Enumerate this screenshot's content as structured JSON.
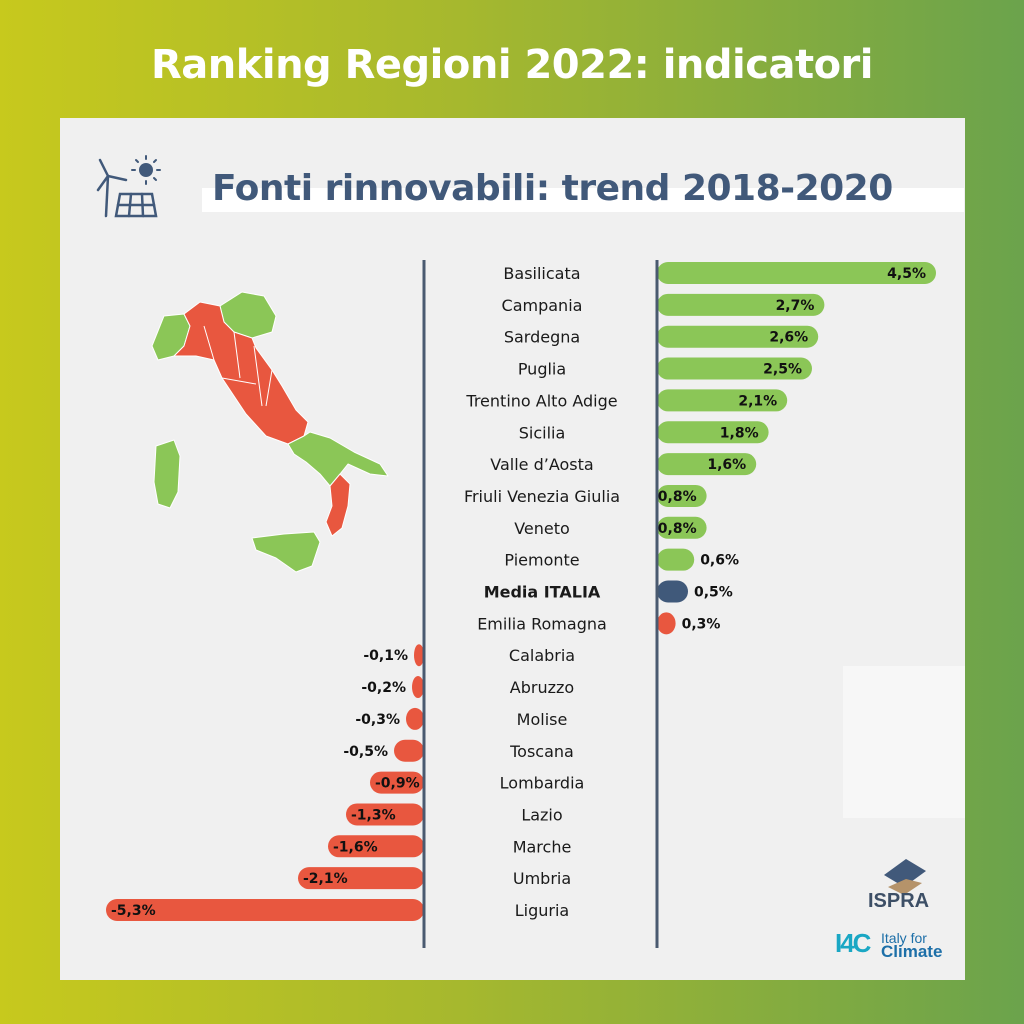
{
  "header": {
    "title": "Ranking Regioni 2022: indicatori",
    "subtitle": "Fonti rinnovabili: trend 2018-2020"
  },
  "logos": {
    "ispra": "ISPRA",
    "i4c_mark": "I4C",
    "i4c_line1": "Italy for",
    "i4c_line2": "Climate"
  },
  "icons": [
    "wind-turbine-icon",
    "solar-panel-icon",
    "sun-icon"
  ],
  "colors": {
    "positive": "#8bc657",
    "negative": "#e8573f",
    "average": "#40597a",
    "divider": "#4a5a70",
    "map_above": "#e8573f",
    "map_below": "#8bc657"
  },
  "chart_data": {
    "type": "bar",
    "orientation": "horizontal",
    "unit": "%",
    "categories": [
      "Basilicata",
      "Campania",
      "Sardegna",
      "Puglia",
      "Trentino Alto Adige",
      "Sicilia",
      "Valle d’Aosta",
      "Friuli Venezia Giulia",
      "Veneto",
      "Piemonte",
      "Media ITALIA",
      "Emilia Romagna",
      "Calabria",
      "Abruzzo",
      "Molise",
      "Toscana",
      "Lombardia",
      "Lazio",
      "Marche",
      "Umbria",
      "Liguria"
    ],
    "values": [
      4.5,
      2.7,
      2.6,
      2.5,
      2.1,
      1.8,
      1.6,
      0.8,
      0.8,
      0.6,
      0.5,
      0.3,
      -0.1,
      -0.2,
      -0.3,
      -0.5,
      -0.9,
      -1.3,
      -1.6,
      -2.1,
      -5.3
    ],
    "value_labels": [
      "4,5%",
      "2,7%",
      "2,6%",
      "2,5%",
      "2,1%",
      "1,8%",
      "1,6%",
      "0,8%",
      "0,8%",
      "0,6%",
      "0,5%",
      "0,3%",
      "-0,1%",
      "-0,2%",
      "-0,3%",
      "-0,5%",
      "-0,9%",
      "-1,3%",
      "-1,6%",
      "-2,1%",
      "-5,3%"
    ],
    "highlight": "Media ITALIA",
    "xlim": [
      -5.3,
      4.5
    ]
  }
}
